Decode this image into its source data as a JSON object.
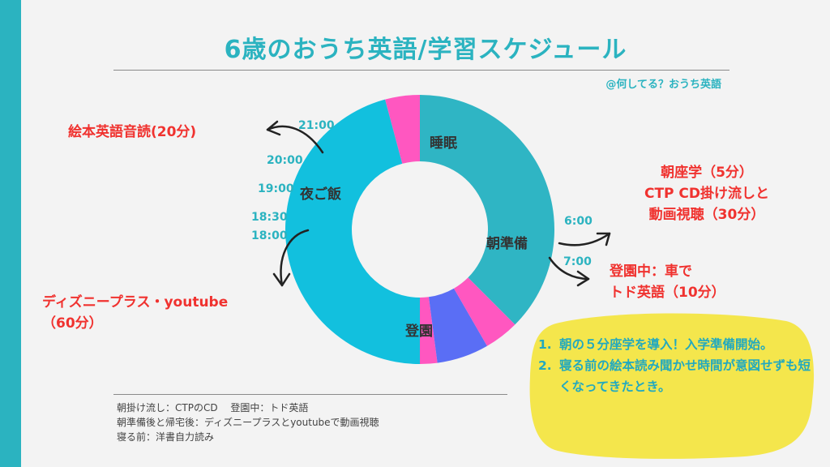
{
  "title": "6歳のおうち英語/学習スケジュール",
  "credit": "@何してる？おうち英語",
  "colors": {
    "teal": "#2bb3c0",
    "sleep": "#2fb5c4",
    "school": "#12c0de",
    "pink": "#ff57c0",
    "blue": "#5a6ef5",
    "red": "#f0322f",
    "blob": "#f4e64c"
  },
  "chart_data": {
    "type": "pie",
    "title": "",
    "unit": "hour-of-day",
    "segments": [
      {
        "label": "睡眠",
        "start": "21:00",
        "end": "6:00",
        "color": "#2fb5c4"
      },
      {
        "label": "朝準備",
        "start": "6:00",
        "end": "7:00",
        "color": "#ff57c0"
      },
      {
        "label": "登園",
        "start": "7:00",
        "end": "18:00",
        "color": "#12c0de"
      },
      {
        "label": "",
        "start": "18:00",
        "end": "18:30",
        "color": "#ff57c0"
      },
      {
        "label": "夜ご飯",
        "start": "18:30",
        "end": "20:00",
        "color": "#5a6ef5"
      },
      {
        "label": "",
        "start": "20:00",
        "end": "21:00",
        "color": "#ff57c0"
      }
    ],
    "segment_labels": [
      "睡眠",
      "朝準備",
      "登園",
      "夜ご飯"
    ],
    "times": [
      "21:00",
      "20:00",
      "19:00",
      "18:30",
      "18:00",
      "6:00",
      "7:00"
    ]
  },
  "annotations": {
    "reading": "絵本英語音読(20分)",
    "morning": [
      "朝座学（5分）",
      "CTP CD掛け流しと",
      "動画視聴（30分）"
    ],
    "commute": [
      "登園中：車で",
      "トド英語（10分）"
    ],
    "tv": [
      "ディズニープラス・youtube",
      "（60分）"
    ]
  },
  "notes": [
    "朝掛け流し：CTPのCD　 登園中：トド英語",
    "朝準備後と帰宅後：ディズニープラスとyoutubeで動画視聴",
    "寝る前：洋書自力読み"
  ],
  "points": [
    {
      "num": "1.",
      "text": "朝の５分座学を導入！入学準備開始。"
    },
    {
      "num": "2.",
      "text": "寝る前の絵本読み聞かせ時間が意図せずも短くなってきたとき。"
    }
  ]
}
